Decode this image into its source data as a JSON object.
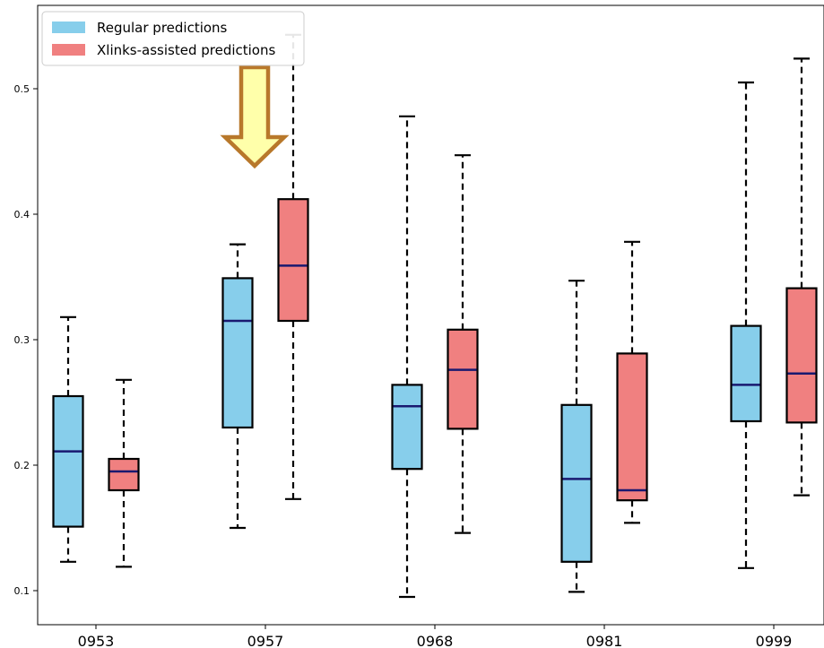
{
  "chart_data": {
    "type": "boxplot",
    "title": "",
    "xlabel": "",
    "ylabel": "",
    "categories": [
      "0953",
      "0957",
      "0968",
      "0981",
      "0999"
    ],
    "ylim": [
      0.07,
      0.55
    ],
    "yticks": [
      "0.1",
      "0.2",
      "0.3",
      "0.4",
      "0.5"
    ],
    "grid": false,
    "legend_position": "top-left",
    "series": [
      {
        "name": "Regular predictions",
        "color": "#87ceeb",
        "boxes": [
          {
            "whisker_low": 0.123,
            "q1": 0.151,
            "median": 0.211,
            "q3": 0.255,
            "whisker_high": 0.318
          },
          {
            "whisker_low": 0.15,
            "q1": 0.23,
            "median": 0.315,
            "q3": 0.349,
            "whisker_high": 0.376
          },
          {
            "whisker_low": 0.095,
            "q1": 0.197,
            "median": 0.247,
            "q3": 0.264,
            "whisker_high": 0.478
          },
          {
            "whisker_low": 0.099,
            "q1": 0.123,
            "median": 0.189,
            "q3": 0.248,
            "whisker_high": 0.347
          },
          {
            "whisker_low": 0.118,
            "q1": 0.235,
            "median": 0.264,
            "q3": 0.311,
            "whisker_high": 0.505
          }
        ]
      },
      {
        "name": "Xlinks-assisted predictions",
        "color": "#f08080",
        "boxes": [
          {
            "whisker_low": 0.119,
            "q1": 0.18,
            "median": 0.195,
            "q3": 0.205,
            "whisker_high": 0.268
          },
          {
            "whisker_low": 0.173,
            "q1": 0.315,
            "median": 0.359,
            "q3": 0.412,
            "whisker_high": 0.543
          },
          {
            "whisker_low": 0.146,
            "q1": 0.229,
            "median": 0.276,
            "q3": 0.308,
            "whisker_high": 0.447
          },
          {
            "whisker_low": 0.154,
            "q1": 0.172,
            "median": 0.18,
            "q3": 0.289,
            "whisker_high": 0.378
          },
          {
            "whisker_low": 0.176,
            "q1": 0.234,
            "median": 0.273,
            "q3": 0.341,
            "whisker_high": 0.524
          }
        ]
      }
    ],
    "median_color": "#191970",
    "annotation": {
      "type": "arrow-down",
      "category": "0957",
      "fill": "#ffffaa",
      "stroke": "#b8782b"
    }
  }
}
